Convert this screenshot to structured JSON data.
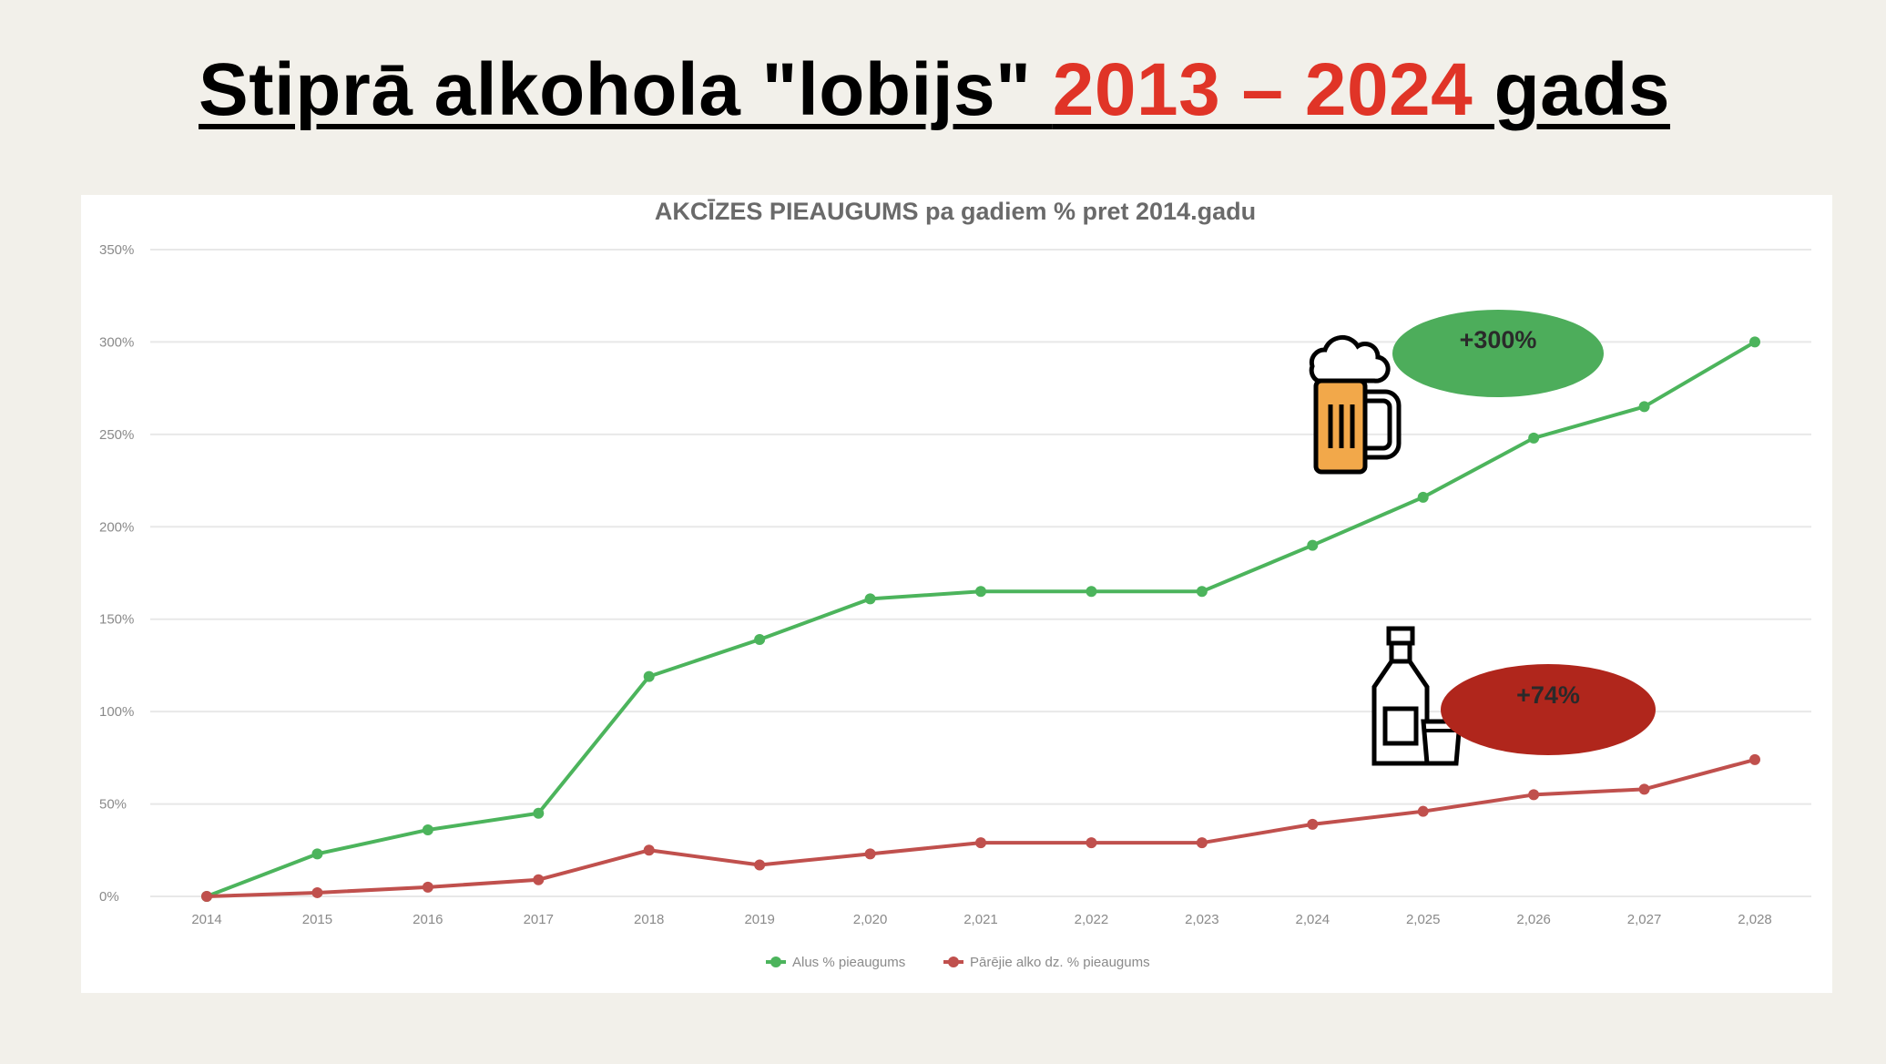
{
  "slide": {
    "title_part1": "Stiprā alkohola \"lobijs\" ",
    "title_accent": "2013 – 2024 ",
    "title_part2": "gads"
  },
  "colors": {
    "accent": "#e03427",
    "beer_series": "#4cb45c",
    "other_series": "#c0504d",
    "beer_badge": "#4dad5b",
    "other_badge": "#b0261c"
  },
  "badges": {
    "beer": "+300%",
    "other": "+74%"
  },
  "icons": {
    "beer": "beer-mug-icon",
    "other": "bottle-and-glass-icon"
  },
  "chart_data": {
    "type": "line",
    "title": "AKCĪZES PIEAUGUMS pa gadiem % pret 2014.gadu",
    "categories": [
      "2014",
      "2015",
      "2016",
      "2017",
      "2018",
      "2019",
      "2,020",
      "2,021",
      "2,022",
      "2,023",
      "2,024",
      "2,025",
      "2,026",
      "2,027",
      "2,028"
    ],
    "ylim": [
      0,
      350
    ],
    "yticks": [
      "0%",
      "50%",
      "100%",
      "150%",
      "200%",
      "250%",
      "300%",
      "350%"
    ],
    "grid": true,
    "legend_position": "bottom",
    "series": [
      {
        "name": "Alus % pieaugums",
        "values": [
          0,
          23,
          36,
          45,
          119,
          139,
          161,
          165,
          165,
          165,
          190,
          216,
          248,
          265,
          300
        ]
      },
      {
        "name": "Pārējie alko dz. % pieaugums",
        "values": [
          0,
          2,
          5,
          9,
          25,
          17,
          23,
          29,
          29,
          29,
          39,
          46,
          55,
          58,
          74
        ]
      }
    ]
  }
}
